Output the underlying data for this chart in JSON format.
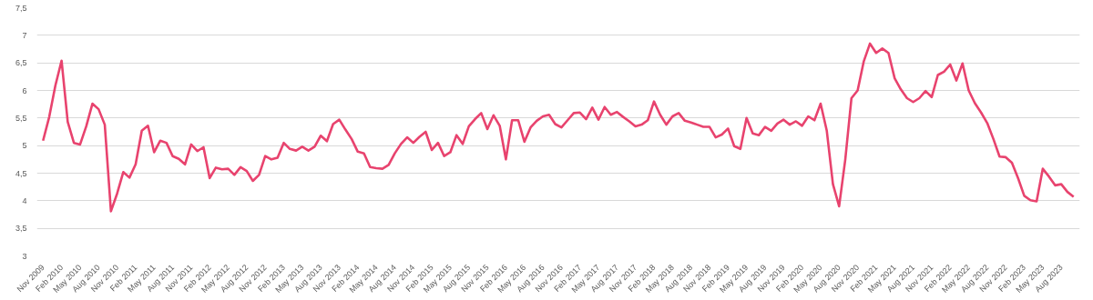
{
  "chart_data": {
    "type": "line",
    "categories": [
      "Nov 2009",
      null,
      null,
      "Feb 2010",
      null,
      null,
      "May 2010",
      null,
      null,
      "Aug 2010",
      null,
      null,
      "Nov 2010",
      null,
      null,
      "Feb 2011",
      null,
      null,
      "May 2011",
      null,
      null,
      "Aug 2011",
      null,
      null,
      "Nov 2011",
      null,
      null,
      "Feb 2012",
      null,
      null,
      "May 2012",
      null,
      null,
      "Aug 2012",
      null,
      null,
      "Nov 2012",
      null,
      null,
      "Feb 2013",
      null,
      null,
      "May 2013",
      null,
      null,
      "Aug 2013",
      null,
      null,
      "Nov 2013",
      null,
      null,
      "Feb 2014",
      null,
      null,
      "May 2014",
      null,
      null,
      "Aug 2014",
      null,
      null,
      "Nov 2014",
      null,
      null,
      "Feb 2015",
      null,
      null,
      "May 2015",
      null,
      null,
      "Aug 2015",
      null,
      null,
      "Nov 2015",
      null,
      null,
      "Feb 2016",
      null,
      null,
      "May 2016",
      null,
      null,
      "Aug 2016",
      null,
      null,
      "Nov 2016",
      null,
      null,
      "Feb 2017",
      null,
      null,
      "May 2017",
      null,
      null,
      "Aug 2017",
      null,
      null,
      "Nov 2017",
      null,
      null,
      "Feb 2018",
      null,
      null,
      "May 2018",
      null,
      null,
      "Aug 2018",
      null,
      null,
      "Nov 2018",
      null,
      null,
      "Feb 2019",
      null,
      null,
      "May 2019",
      null,
      null,
      "Aug 2019",
      null,
      null,
      "Nov 2019",
      null,
      null,
      "Feb 2020",
      null,
      null,
      "May 2020",
      null,
      null,
      "Aug 2020",
      null,
      null,
      "Nov 2020",
      null,
      null,
      "Feb 2021",
      null,
      null,
      "May 2021",
      null,
      null,
      "Aug 2021",
      null,
      null,
      "Nov 2021",
      null,
      null,
      "Feb 2022",
      null,
      null,
      "May 2022",
      null,
      null,
      "Aug 2022",
      null,
      null,
      "Nov 2022",
      null,
      null,
      "Feb 2023",
      null,
      null,
      "May 2023",
      null,
      null,
      "Aug 2023",
      null,
      null
    ],
    "series": [
      {
        "color": "#e8436e",
        "values": [
          5.09,
          5.52,
          6.09,
          6.54,
          5.43,
          5.05,
          5.02,
          5.35,
          5.76,
          5.66,
          5.38,
          3.81,
          4.13,
          4.52,
          4.42,
          4.66,
          5.27,
          5.36,
          4.88,
          5.09,
          5.05,
          4.81,
          4.76,
          4.66,
          5.02,
          4.9,
          4.97,
          4.41,
          4.6,
          4.57,
          4.58,
          4.47,
          4.61,
          4.54,
          4.36,
          4.47,
          4.81,
          4.75,
          4.78,
          5.05,
          4.94,
          4.91,
          4.98,
          4.91,
          4.98,
          5.18,
          5.08,
          5.39,
          5.47,
          5.29,
          5.12,
          4.89,
          4.86,
          4.61,
          4.59,
          4.58,
          4.65,
          4.86,
          5.03,
          5.15,
          5.05,
          5.16,
          5.25,
          4.92,
          5.05,
          4.81,
          4.88,
          5.19,
          5.03,
          5.35,
          5.48,
          5.59,
          5.3,
          5.55,
          5.36,
          4.75,
          5.46,
          5.46,
          5.07,
          5.33,
          5.45,
          5.53,
          5.56,
          5.39,
          5.33,
          5.46,
          5.59,
          5.6,
          5.48,
          5.69,
          5.47,
          5.7,
          5.56,
          5.61,
          5.52,
          5.44,
          5.35,
          5.38,
          5.46,
          5.8,
          5.56,
          5.38,
          5.53,
          5.59,
          5.45,
          5.42,
          5.38,
          5.34,
          5.34,
          5.15,
          5.2,
          5.31,
          4.99,
          4.94,
          5.5,
          5.22,
          5.19,
          5.34,
          5.27,
          5.4,
          5.47,
          5.38,
          5.44,
          5.36,
          5.53,
          5.46,
          5.76,
          5.27,
          4.3,
          3.9,
          4.75,
          5.86,
          6.0,
          6.53,
          6.85,
          6.68,
          6.76,
          6.68,
          6.22,
          6.02,
          5.86,
          5.79,
          5.86,
          5.99,
          5.88,
          6.28,
          6.34,
          6.47,
          6.18,
          6.49,
          6.0,
          5.77,
          5.6,
          5.41,
          5.12,
          4.8,
          4.79,
          4.69,
          4.41,
          4.09,
          4.01,
          3.99,
          4.58,
          4.44,
          4.28,
          4.3,
          4.16,
          4.07
        ]
      }
    ],
    "ylim": [
      3,
      7.5
    ],
    "yticks": [
      3,
      {
        "value": 3.5,
        "label": "3,5"
      },
      4,
      {
        "value": 4.5,
        "label": "4,5"
      },
      5,
      {
        "value": 5.5,
        "label": "5,5"
      },
      6,
      {
        "value": 6.5,
        "label": "6,5"
      },
      7,
      {
        "value": 7.5,
        "label": "7,5"
      }
    ],
    "grid": "y",
    "marker": "none",
    "line_style": "solid"
  }
}
